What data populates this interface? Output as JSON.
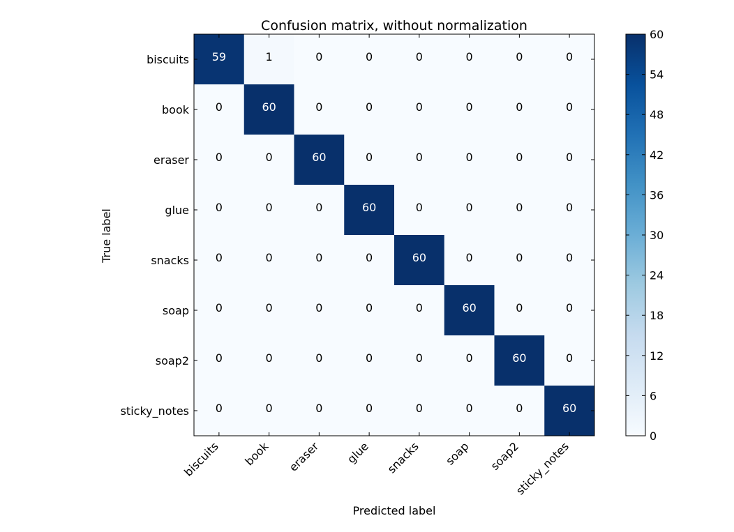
{
  "chart_data": {
    "type": "heatmap",
    "title": "Confusion matrix, without normalization",
    "xlabel": "Predicted label",
    "ylabel": "True label",
    "x_categories": [
      "biscuits",
      "book",
      "eraser",
      "glue",
      "snacks",
      "soap",
      "soap2",
      "sticky_notes"
    ],
    "y_categories": [
      "biscuits",
      "book",
      "eraser",
      "glue",
      "snacks",
      "soap",
      "soap2",
      "sticky_notes"
    ],
    "matrix": [
      [
        59,
        1,
        0,
        0,
        0,
        0,
        0,
        0
      ],
      [
        0,
        60,
        0,
        0,
        0,
        0,
        0,
        0
      ],
      [
        0,
        0,
        60,
        0,
        0,
        0,
        0,
        0
      ],
      [
        0,
        0,
        0,
        60,
        0,
        0,
        0,
        0
      ],
      [
        0,
        0,
        0,
        0,
        60,
        0,
        0,
        0
      ],
      [
        0,
        0,
        0,
        0,
        0,
        60,
        0,
        0
      ],
      [
        0,
        0,
        0,
        0,
        0,
        0,
        60,
        0
      ],
      [
        0,
        0,
        0,
        0,
        0,
        0,
        0,
        60
      ]
    ],
    "colorbar": {
      "colormap": "Blues",
      "range": [
        0,
        60
      ],
      "ticks": [
        0,
        6,
        12,
        18,
        24,
        30,
        36,
        42,
        48,
        54,
        60
      ]
    },
    "text_colors": {
      "dark_cell": "#ffffff",
      "light_cell": "#000000"
    }
  }
}
